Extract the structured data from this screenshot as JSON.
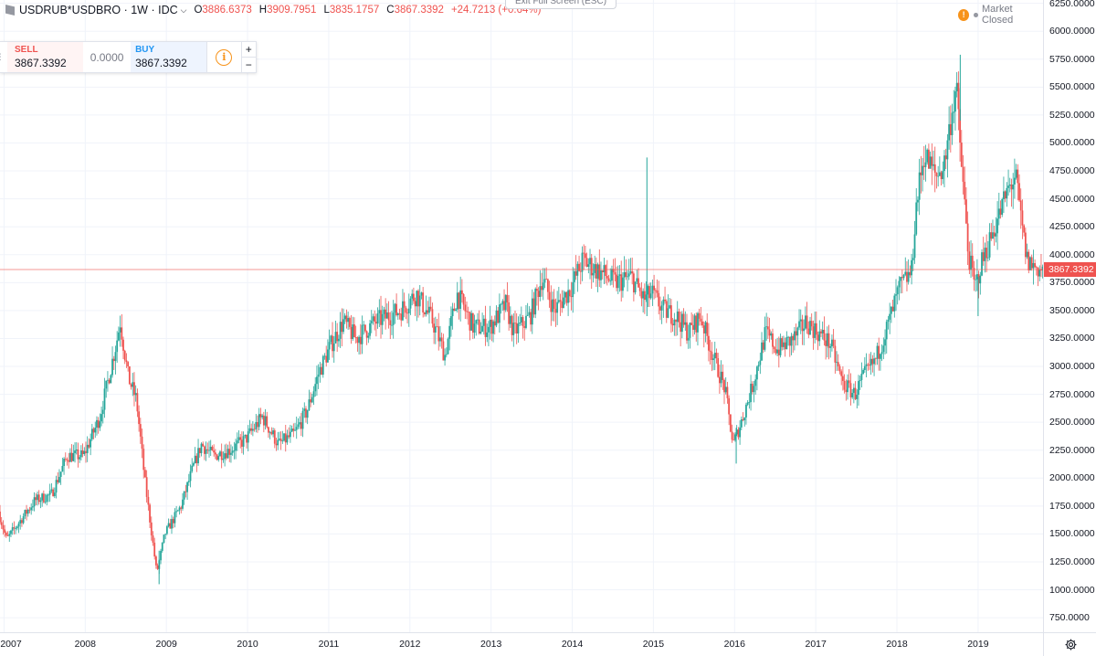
{
  "header": {
    "symbol": "USDRUB*USDBRO",
    "interval": "1W",
    "source": "IDC",
    "symbol_title": "USDRUB*USDBRO · 1W · IDC",
    "ohlc": {
      "open_label": "O",
      "open": "3886.6373",
      "high_label": "H",
      "high": "3909.7951",
      "low_label": "L",
      "low": "3835.1757",
      "close_label": "C",
      "close": "3867.3392"
    },
    "change": "+24.7213 (+0.64%)",
    "exit_fullscreen": "Exit Full Screen (ESC)",
    "market_status": "Market Closed",
    "warning_icon": "!"
  },
  "trade": {
    "sell_label": "SELL",
    "sell_price": "3867.3392",
    "spread": "0.0000",
    "buy_label": "BUY",
    "buy_price": "3867.3392",
    "info_icon": "i",
    "plus": "+",
    "minus": "−"
  },
  "colors": {
    "up": "#26a69a",
    "down": "#ef5350",
    "grid": "#f0f3fa",
    "last_price_line": "#ef5350"
  },
  "chart_data": {
    "type": "candlestick",
    "last_price": 3867.3392,
    "last_price_label": "3867.3392",
    "ylim": [
      620,
      6280
    ],
    "y_ticks": [
      750,
      1000,
      1250,
      1500,
      1750,
      2000,
      2250,
      2500,
      2750,
      3000,
      3250,
      3500,
      3750,
      4000,
      4250,
      4500,
      4750,
      5000,
      5250,
      5500,
      5750,
      6000,
      6250
    ],
    "y_tick_labels": [
      "750.0000",
      "1000.0000",
      "1250.0000",
      "1500.0000",
      "1750.0000",
      "2000.0000",
      "2250.0000",
      "2500.0000",
      "2750.0000",
      "3000.0000",
      "3250.0000",
      "3500.0000",
      "3750.0000",
      "4000.0000",
      "4250.0000",
      "4500.0000",
      "4750.0000",
      "5000.0000",
      "5250.0000",
      "5500.0000",
      "5750.0000",
      "6000.0000",
      "6250.0000"
    ],
    "x_range": [
      2006.95,
      2019.8
    ],
    "x_ticks": [
      2007,
      2008,
      2009,
      2010,
      2011,
      2012,
      2013,
      2014,
      2015,
      2016,
      2017,
      2018,
      2019
    ],
    "x_tick_labels": [
      "2007",
      "2008",
      "2009",
      "2010",
      "2011",
      "2012",
      "2013",
      "2014",
      "2015",
      "2016",
      "2017",
      "2018",
      "2019"
    ],
    "price_path": [
      [
        2006.95,
        1700
      ],
      [
        2007.05,
        1450
      ],
      [
        2007.2,
        1600
      ],
      [
        2007.4,
        1800
      ],
      [
        2007.6,
        1850
      ],
      [
        2007.8,
        2200
      ],
      [
        2008.0,
        2200
      ],
      [
        2008.2,
        2550
      ],
      [
        2008.4,
        3200
      ],
      [
        2008.45,
        3400
      ],
      [
        2008.55,
        2900
      ],
      [
        2008.65,
        2700
      ],
      [
        2008.75,
        2000
      ],
      [
        2008.9,
        1150
      ],
      [
        2009.0,
        1500
      ],
      [
        2009.2,
        1750
      ],
      [
        2009.35,
        2100
      ],
      [
        2009.45,
        2300
      ],
      [
        2009.6,
        2200
      ],
      [
        2009.8,
        2250
      ],
      [
        2010.0,
        2350
      ],
      [
        2010.2,
        2550
      ],
      [
        2010.4,
        2300
      ],
      [
        2010.6,
        2400
      ],
      [
        2010.75,
        2600
      ],
      [
        2010.9,
        2950
      ],
      [
        2011.05,
        3200
      ],
      [
        2011.2,
        3400
      ],
      [
        2011.35,
        3250
      ],
      [
        2011.6,
        3400
      ],
      [
        2011.9,
        3500
      ],
      [
        2012.1,
        3650
      ],
      [
        2012.3,
        3400
      ],
      [
        2012.45,
        3100
      ],
      [
        2012.6,
        3650
      ],
      [
        2012.8,
        3350
      ],
      [
        2013.0,
        3350
      ],
      [
        2013.2,
        3550
      ],
      [
        2013.3,
        3300
      ],
      [
        2013.5,
        3450
      ],
      [
        2013.65,
        3800
      ],
      [
        2013.8,
        3500
      ],
      [
        2014.0,
        3700
      ],
      [
        2014.15,
        3950
      ],
      [
        2014.35,
        3850
      ],
      [
        2014.55,
        3750
      ],
      [
        2014.75,
        3800
      ],
      [
        2014.9,
        3600
      ],
      [
        2015.0,
        3650
      ],
      [
        2015.15,
        3500
      ],
      [
        2015.3,
        3450
      ],
      [
        2015.45,
        3300
      ],
      [
        2015.6,
        3450
      ],
      [
        2015.75,
        3100
      ],
      [
        2015.9,
        2800
      ],
      [
        2016.0,
        2300
      ],
      [
        2016.1,
        2500
      ],
      [
        2016.25,
        2850
      ],
      [
        2016.4,
        3300
      ],
      [
        2016.55,
        3150
      ],
      [
        2016.75,
        3250
      ],
      [
        2016.9,
        3400
      ],
      [
        2017.05,
        3300
      ],
      [
        2017.2,
        3200
      ],
      [
        2017.35,
        2850
      ],
      [
        2017.5,
        2750
      ],
      [
        2017.6,
        2900
      ],
      [
        2017.75,
        3050
      ],
      [
        2017.9,
        3350
      ],
      [
        2018.05,
        3700
      ],
      [
        2018.2,
        3850
      ],
      [
        2018.25,
        4400
      ],
      [
        2018.35,
        4900
      ],
      [
        2018.5,
        4700
      ],
      [
        2018.6,
        4800
      ],
      [
        2018.7,
        5300
      ],
      [
        2018.75,
        5500
      ],
      [
        2018.8,
        4950
      ],
      [
        2018.9,
        4000
      ],
      [
        2018.98,
        3700
      ],
      [
        2019.05,
        3900
      ],
      [
        2019.15,
        4100
      ],
      [
        2019.3,
        4400
      ],
      [
        2019.4,
        4600
      ],
      [
        2019.48,
        4700
      ],
      [
        2019.55,
        4300
      ],
      [
        2019.62,
        3950
      ],
      [
        2019.7,
        3900
      ],
      [
        2019.8,
        3867
      ]
    ],
    "spikes": [
      {
        "x": 2014.92,
        "high": 4870,
        "low": 3450
      },
      {
        "x": 2018.78,
        "high": 5790,
        "low": 5200
      },
      {
        "x": 2019.0,
        "high": 3800,
        "low": 3450
      },
      {
        "x": 2016.02,
        "high": 2450,
        "low": 2130
      },
      {
        "x": 2008.91,
        "high": 1350,
        "low": 1050
      }
    ]
  }
}
